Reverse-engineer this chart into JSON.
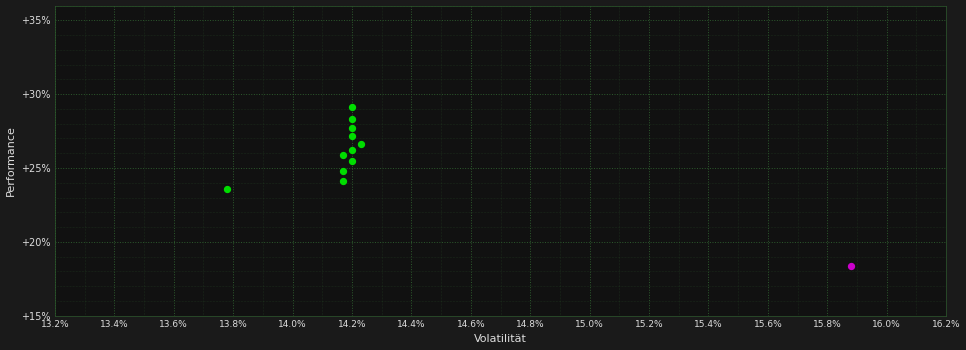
{
  "background_color": "#1a1a1a",
  "plot_bg_color": "#111111",
  "grid_color": "#2d5a2d",
  "text_color": "#dddddd",
  "xlabel": "Volatilität",
  "ylabel": "Performance",
  "xlim": [
    13.2,
    16.2
  ],
  "ylim": [
    15.0,
    36.0
  ],
  "yticks": [
    15,
    20,
    25,
    30,
    35
  ],
  "xticks": [
    13.2,
    13.4,
    13.6,
    13.8,
    14.0,
    14.2,
    14.4,
    14.6,
    14.8,
    15.0,
    15.2,
    15.4,
    15.6,
    15.8,
    16.0,
    16.2
  ],
  "green_points": [
    [
      14.2,
      29.1
    ],
    [
      14.2,
      28.3
    ],
    [
      14.2,
      27.7
    ],
    [
      14.2,
      27.2
    ],
    [
      14.23,
      26.6
    ],
    [
      14.2,
      26.2
    ],
    [
      14.17,
      25.9
    ],
    [
      14.2,
      25.5
    ],
    [
      14.17,
      24.8
    ],
    [
      14.17,
      24.1
    ],
    [
      13.78,
      23.6
    ]
  ],
  "magenta_points": [
    [
      15.88,
      18.4
    ]
  ],
  "green_color": "#00dd00",
  "magenta_color": "#cc00cc",
  "point_size": 18
}
